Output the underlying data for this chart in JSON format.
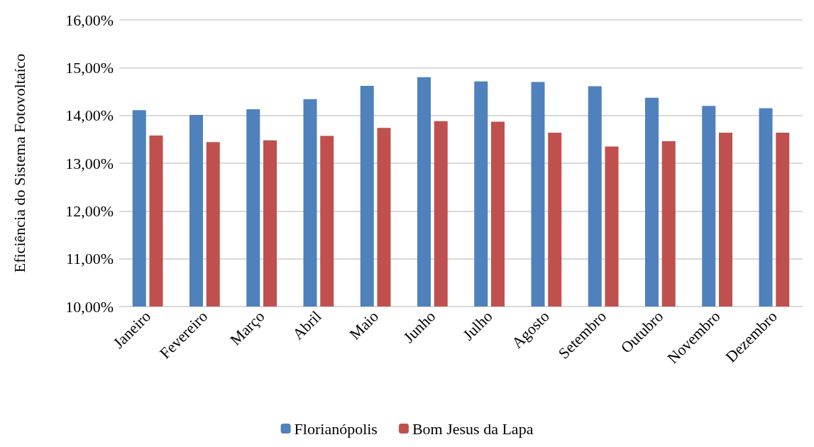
{
  "chart_data": {
    "type": "bar",
    "ylabel": "Eficiência do Sistema Fotovoltaíco",
    "categories": [
      "Janeiro",
      "Fevereiro",
      "Março",
      "Abril",
      "Maio",
      "Junho",
      "Julho",
      "Agosto",
      "Setembro",
      "Outubro",
      "Novembro",
      "Dezembro"
    ],
    "series": [
      {
        "name": "Florianópolis",
        "color": "#4f81bd",
        "values": [
          14.11,
          14.01,
          14.13,
          14.34,
          14.62,
          14.8,
          14.71,
          14.7,
          14.61,
          14.37,
          14.2,
          14.15
        ]
      },
      {
        "name": "Bom Jesus da Lapa",
        "color": "#c0504d",
        "values": [
          13.58,
          13.44,
          13.48,
          13.57,
          13.74,
          13.88,
          13.87,
          13.64,
          13.35,
          13.46,
          13.64,
          13.64
        ]
      }
    ],
    "ylim": [
      10,
      16
    ],
    "yticks": [
      {
        "value": 10,
        "label": "10,00%"
      },
      {
        "value": 11,
        "label": "11,00%"
      },
      {
        "value": 12,
        "label": "12,00%"
      },
      {
        "value": 13,
        "label": "13,00%"
      },
      {
        "value": 14,
        "label": "14,00%"
      },
      {
        "value": 15,
        "label": "15,00%"
      },
      {
        "value": 16,
        "label": "16,00%"
      }
    ],
    "grid": "y",
    "legend": "bottom"
  }
}
